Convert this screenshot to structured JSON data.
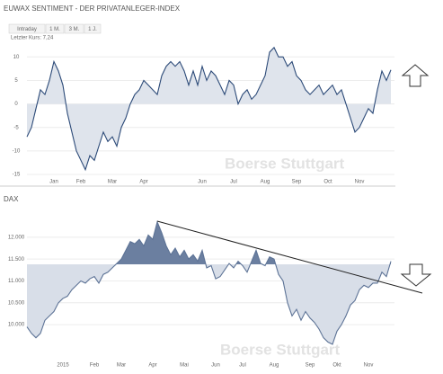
{
  "chart_data": [
    {
      "type": "area",
      "title": "EUWAX SENTIMENT - DER PRIVATANLEGER-INDEX",
      "range_buttons": [
        "Intraday",
        "1 M.",
        "3 M.",
        "1 J."
      ],
      "last_price_label": "Letzter Kurs: 7,24",
      "watermark": "Boerse Stuttgart",
      "categories": [
        null,
        null,
        null,
        null,
        null,
        null,
        "Jan",
        null,
        null,
        null,
        null,
        null,
        "Feb",
        null,
        null,
        null,
        null,
        null,
        null,
        "Mar",
        null,
        null,
        null,
        null,
        null,
        null,
        "Apr",
        null,
        null,
        null,
        null,
        null,
        null,
        null,
        null,
        null,
        null,
        null,
        null,
        "Jun",
        null,
        null,
        null,
        null,
        null,
        null,
        "Jul",
        null,
        null,
        null,
        null,
        null,
        null,
        "Aug",
        null,
        null,
        null,
        null,
        null,
        null,
        "Sep",
        null,
        null,
        null,
        null,
        null,
        null,
        "Oct",
        null,
        null,
        null,
        null,
        null,
        null,
        "Nov",
        null,
        null,
        null,
        null,
        null,
        null,
        null
      ],
      "values": [
        -7,
        -5,
        -1,
        3,
        2,
        5,
        9,
        7,
        4,
        -2,
        -6,
        -10,
        -12,
        -14,
        -11,
        -12,
        -9,
        -6,
        -8,
        -7,
        -9,
        -5,
        -3,
        0,
        2,
        3,
        5,
        4,
        3,
        2,
        6,
        8,
        9,
        8,
        9,
        7,
        4,
        7,
        4,
        8,
        5,
        7,
        6,
        4,
        2,
        5,
        4,
        0,
        2,
        3,
        1,
        2,
        4,
        6,
        11,
        12,
        10,
        10,
        8,
        9,
        6,
        5,
        3,
        2,
        3,
        4,
        2,
        3,
        4,
        2,
        3,
        0,
        -3,
        -6,
        -5,
        -3,
        -1,
        -2,
        3,
        7,
        5,
        7.24
      ],
      "baseline": 0,
      "line_color": "#2c4a78",
      "fill_above_color": "#dfe4ec",
      "fill_below_color": "#dfe4ec",
      "ylim": [
        -15,
        13.5
      ],
      "yticks": [
        10,
        5,
        0,
        -5,
        -10,
        -15
      ],
      "grid": true
    },
    {
      "type": "area",
      "title": "DAX",
      "watermark": "Boerse Stuttgart",
      "categories": [
        null,
        null,
        null,
        null,
        null,
        null,
        null,
        null,
        "2015",
        null,
        null,
        null,
        null,
        null,
        null,
        "Feb",
        null,
        null,
        null,
        null,
        null,
        "Mar",
        null,
        null,
        null,
        null,
        null,
        null,
        "Apr",
        null,
        null,
        null,
        null,
        null,
        null,
        "Mai",
        null,
        null,
        null,
        null,
        null,
        null,
        "Jun",
        null,
        null,
        null,
        null,
        null,
        "Jul",
        null,
        null,
        null,
        null,
        null,
        null,
        "Aug",
        null,
        null,
        null,
        null,
        null,
        null,
        null,
        "Sep",
        null,
        null,
        null,
        null,
        null,
        "Okt",
        null,
        null,
        null,
        null,
        null,
        null,
        "Nov",
        null,
        null,
        null,
        null,
        null
      ],
      "values": [
        9950,
        9800,
        9700,
        9800,
        10100,
        10200,
        10300,
        10500,
        10600,
        10650,
        10800,
        10900,
        11000,
        10950,
        11050,
        11100,
        10950,
        11150,
        11200,
        11300,
        11400,
        11500,
        11700,
        11900,
        11850,
        11950,
        11800,
        12050,
        11950,
        12350,
        12100,
        11800,
        11600,
        11750,
        11550,
        11700,
        11500,
        11600,
        11450,
        11700,
        11300,
        11350,
        11050,
        11100,
        11250,
        11400,
        11300,
        11450,
        11350,
        11200,
        11450,
        11700,
        11400,
        11350,
        11550,
        11500,
        11150,
        11000,
        10500,
        10200,
        10350,
        10100,
        10300,
        10150,
        10050,
        9900,
        9700,
        9600,
        9550,
        9850,
        10000,
        10200,
        10450,
        10550,
        10800,
        10900,
        10850,
        10950,
        10950,
        11200,
        11100,
        11450
      ],
      "baseline": 11380,
      "line_color": "#5d7396",
      "fill_above_color": "#6b7fa0",
      "fill_below_color": "#d8dee8",
      "ylim": [
        9200,
        12450
      ],
      "yticks": [
        {
          "value": 12000,
          "label": "12.000"
        },
        {
          "value": 11500,
          "label": "11.500"
        },
        {
          "value": 11000,
          "label": "11.000"
        },
        {
          "value": 10500,
          "label": "10.500"
        },
        {
          "value": 10000,
          "label": "10.000"
        }
      ],
      "grid": true
    }
  ]
}
